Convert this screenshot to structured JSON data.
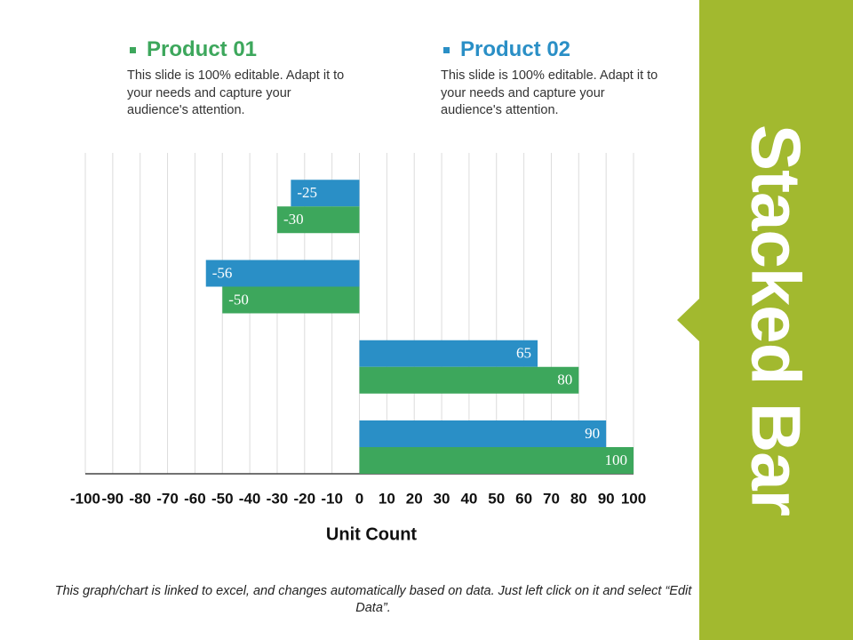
{
  "chart_data": {
    "type": "bar",
    "orientation": "horizontal",
    "title": "Stacked Bar",
    "categories": [
      null,
      null,
      null,
      null
    ],
    "series": [
      {
        "name": "Product 01",
        "color": "#3da75c",
        "description": "This slide is 100% editable. Adapt it to your needs and capture your audience's attention.",
        "values": [
          -30,
          -50,
          80,
          100
        ]
      },
      {
        "name": "Product 02",
        "color": "#2a8fc6",
        "description": "This slide is 100% editable. Adapt it to your needs and capture your audience's attention.",
        "values": [
          -25,
          -56,
          65,
          90
        ]
      }
    ],
    "xlim": [
      -100,
      100
    ],
    "xticks": [
      -100,
      -90,
      -80,
      -70,
      -60,
      -50,
      -40,
      -30,
      -20,
      -10,
      0,
      10,
      20,
      30,
      40,
      50,
      60,
      70,
      80,
      90,
      100
    ],
    "xlabel": "Unit Count",
    "grid": true,
    "note": "This graph/chart is linked to excel, and changes automatically based on data. Just left click on it and select “Edit Data”."
  }
}
